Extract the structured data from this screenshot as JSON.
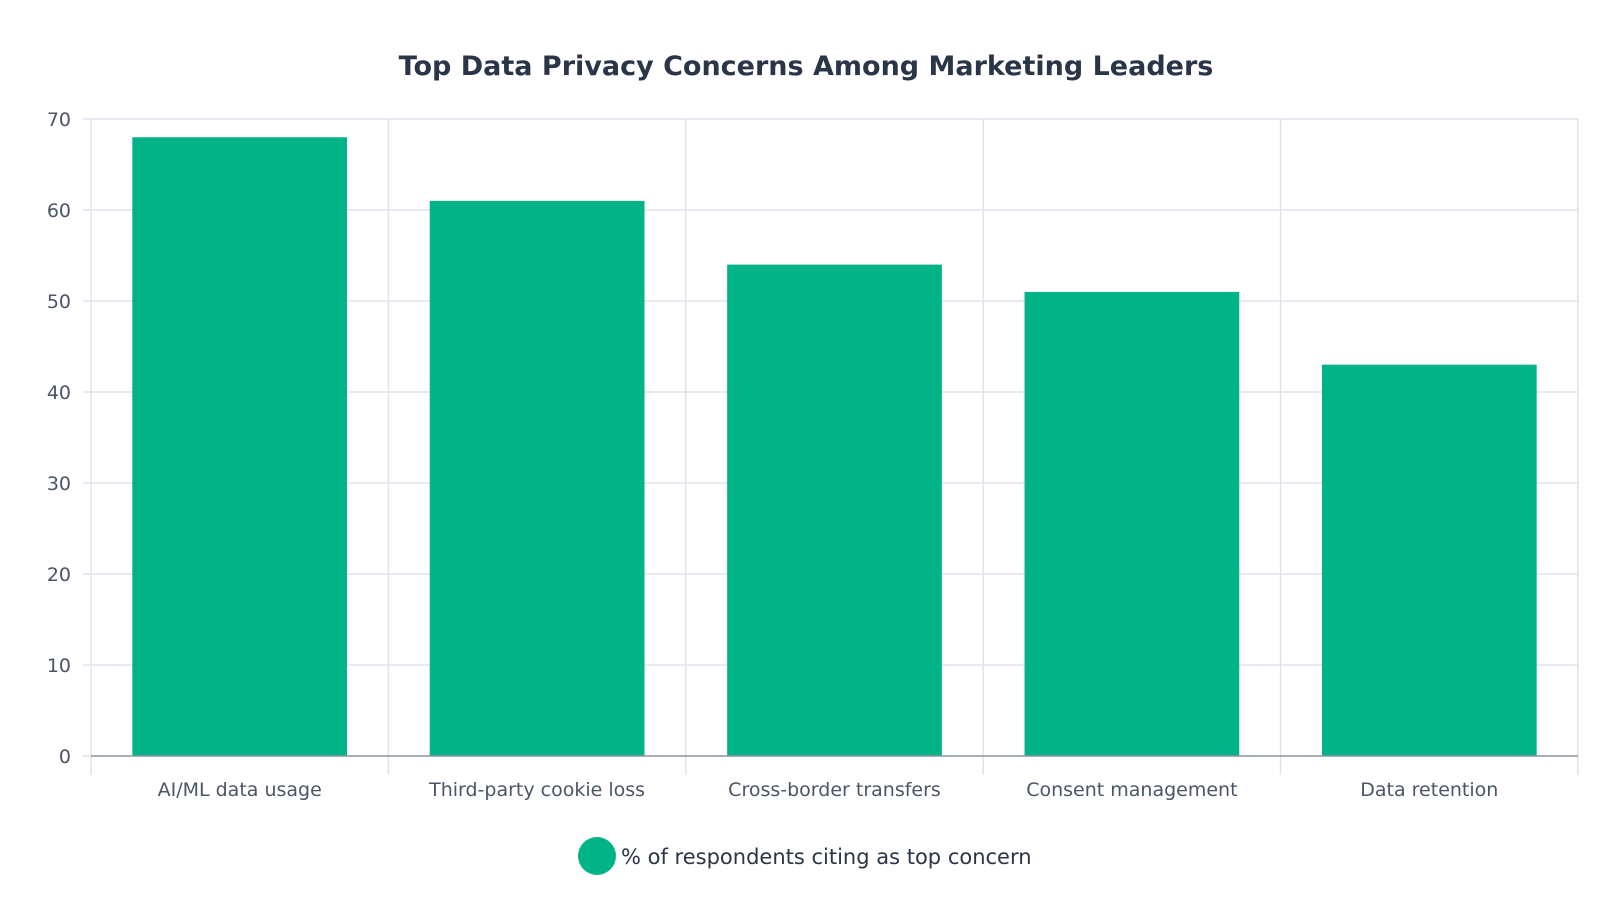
{
  "chart_data": {
    "type": "bar",
    "title": "Top Data Privacy Concerns Among Marketing Leaders",
    "xlabel": "",
    "ylabel": "",
    "categories": [
      "AI/ML data usage",
      "Third-party cookie loss",
      "Cross-border transfers",
      "Consent management",
      "Data retention"
    ],
    "series": [
      {
        "name": "% of respondents citing as top concern",
        "values": [
          68,
          61,
          54,
          51,
          43
        ],
        "color": "#02b388"
      }
    ],
    "ylim": [
      0,
      70
    ],
    "yticks": [
      0,
      10,
      20,
      30,
      40,
      50,
      60,
      70
    ],
    "grid": true,
    "legend": "bottom-center",
    "colors": {
      "grid": "#dfe3ec",
      "axis": "#8a93a3",
      "text": "#4a5568",
      "title": "#2a3547"
    }
  }
}
